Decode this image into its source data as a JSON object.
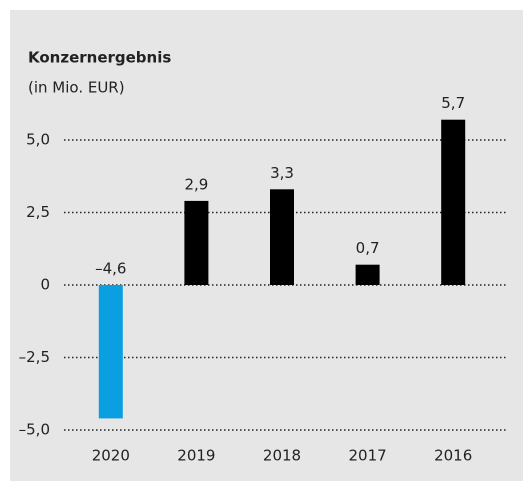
{
  "chart_data": {
    "type": "bar",
    "title": "Konzernergebnis",
    "subtitle": "(in Mio. EUR)",
    "categories": [
      "2020",
      "2019",
      "2018",
      "2017",
      "2016"
    ],
    "values": [
      -4.6,
      2.9,
      3.3,
      0.7,
      5.7
    ],
    "value_labels": [
      "–4,6",
      "2,9",
      "3,3",
      "0,7",
      "5,7"
    ],
    "colors": [
      "#0a9fe0",
      "#000000",
      "#000000",
      "#000000",
      "#000000"
    ],
    "ylim": [
      -5,
      6
    ],
    "yticks": [
      {
        "value": -5,
        "label": "–5,0"
      },
      {
        "value": -2.5,
        "label": "–2,5"
      },
      0,
      {
        "value": 2.5,
        "label": "2,5"
      },
      {
        "value": 5,
        "label": "5,0"
      }
    ],
    "grid": true
  }
}
